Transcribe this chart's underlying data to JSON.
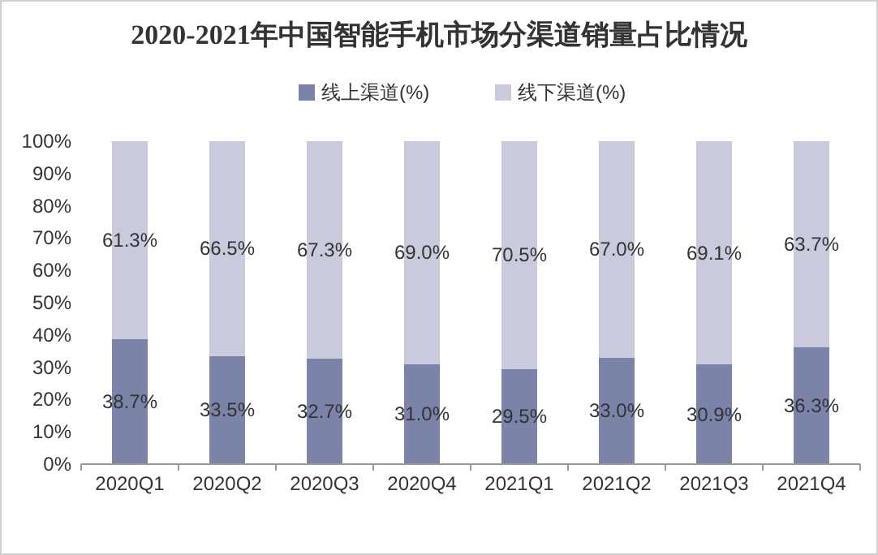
{
  "chart_data": {
    "type": "bar",
    "title": "2020-2021年中国智能手机市场分渠道销量占比情况",
    "stacked": true,
    "legend": "top",
    "categories": [
      "2020Q1",
      "2020Q2",
      "2020Q3",
      "2020Q4",
      "2021Q1",
      "2021Q2",
      "2021Q3",
      "2021Q4"
    ],
    "series": [
      {
        "name": "线上渠道(%)",
        "color": "#7b84a8",
        "values": [
          38.7,
          33.5,
          32.7,
          31.0,
          29.5,
          33.0,
          30.9,
          36.3
        ],
        "value_labels": [
          "38.7%",
          "33.5%",
          "32.7%",
          "31.0%",
          "29.5%",
          "33.0%",
          "30.9%",
          "36.3%"
        ]
      },
      {
        "name": "线下渠道(%)",
        "color": "#c9cadb",
        "values": [
          61.3,
          66.5,
          67.3,
          69.0,
          70.5,
          67.0,
          69.1,
          63.7
        ],
        "value_labels": [
          "61.3%",
          "66.5%",
          "67.3%",
          "69.0%",
          "70.5%",
          "67.0%",
          "69.1%",
          "63.7%"
        ]
      }
    ],
    "ylim": [
      0,
      100
    ],
    "yticks": [
      {
        "value": 0,
        "label": "0%"
      },
      {
        "value": 10,
        "label": "10%"
      },
      {
        "value": 20,
        "label": "20%"
      },
      {
        "value": 30,
        "label": "30%"
      },
      {
        "value": 40,
        "label": "40%"
      },
      {
        "value": 50,
        "label": "50%"
      },
      {
        "value": 60,
        "label": "60%"
      },
      {
        "value": 70,
        "label": "70%"
      },
      {
        "value": 80,
        "label": "80%"
      },
      {
        "value": 90,
        "label": "90%"
      },
      {
        "value": 100,
        "label": "100%"
      }
    ]
  }
}
